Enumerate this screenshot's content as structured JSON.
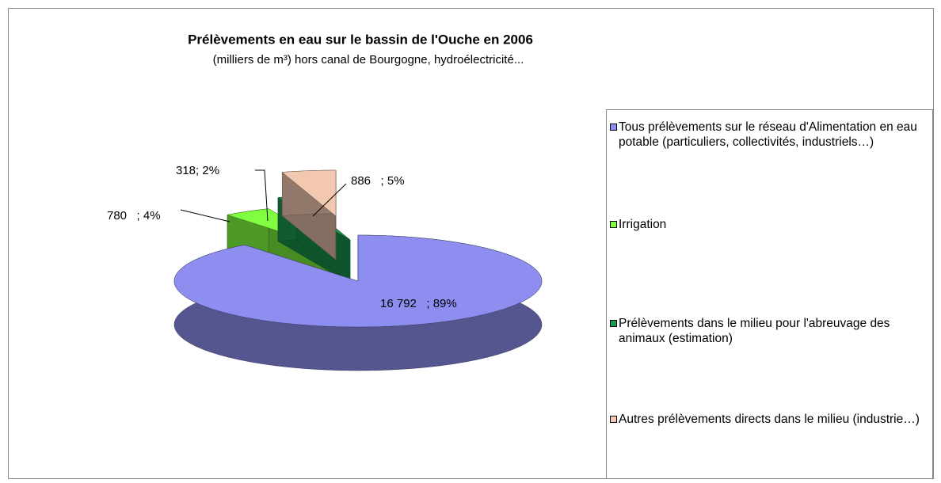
{
  "chart_data": {
    "type": "pie",
    "title": "Prélèvements en eau sur le bassin de l'Ouche en 2006",
    "subtitle": "(milliers de m³) hors canal de Bourgogne, hydroélectricité...",
    "categories": [
      "Tous prélèvements sur le réseau d'Alimentation en eau potable (particuliers, collectivités, industriels…)",
      "Irrigation",
      "Prélèvements dans le milieu pour l'abreuvage des animaux (estimation)",
      "Autres prélèvements directs dans le milieu (industrie…)"
    ],
    "values": [
      16792,
      780,
      318,
      886
    ],
    "value_labels": [
      "16 792   ; 89%",
      "780   ; 4%",
      "318; 2%",
      "886   ; 5%"
    ],
    "colors": [
      "#8e8ef0",
      "#80ff40",
      "#1a9a50",
      "#f2c8b0"
    ],
    "legend": "right"
  }
}
